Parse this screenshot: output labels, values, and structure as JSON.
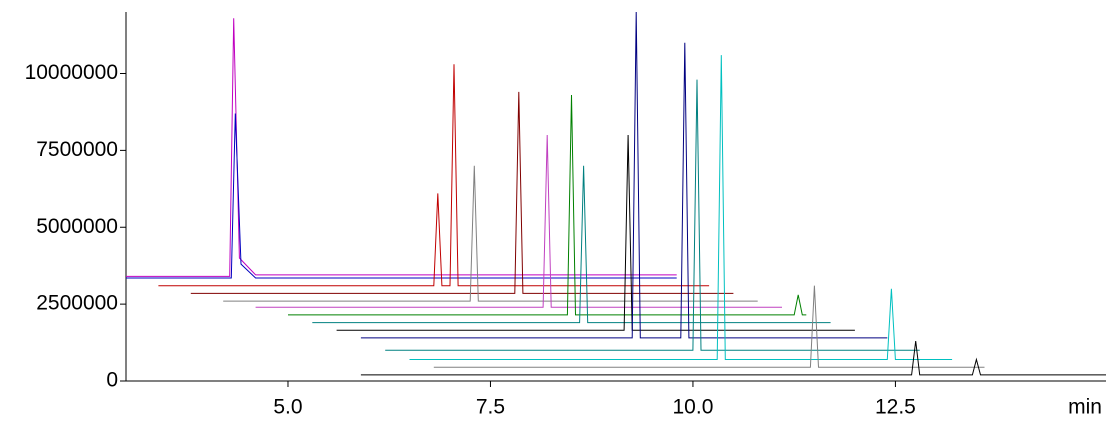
{
  "chart_data": {
    "type": "line",
    "x_unit_label": "min",
    "xlim": [
      3.0,
      15.1
    ],
    "ylim": [
      0,
      12000000
    ],
    "xticks": [
      {
        "value": 5,
        "label": "5.0"
      },
      7.5,
      {
        "value": 10,
        "label": "10.0"
      },
      12.5
    ],
    "yticks": [
      0,
      2500000,
      5000000,
      7500000,
      10000000
    ],
    "series": [
      {
        "color": "#c000c0",
        "x": [
          3.0,
          4.28,
          4.33,
          4.4,
          4.6,
          9.8
        ],
        "values": [
          3400000,
          3400000,
          11800000,
          4000000,
          3450000,
          3450000
        ]
      },
      {
        "color": "#0000c0",
        "x": [
          3.0,
          4.3,
          4.35,
          4.42,
          4.6,
          9.8
        ],
        "values": [
          3350000,
          3350000,
          8700000,
          3800000,
          3350000,
          3350000
        ]
      },
      {
        "color": "#c00000",
        "x": [
          3.4,
          6.8,
          6.85,
          6.9,
          7.0,
          7.05,
          7.1,
          10.2
        ],
        "values": [
          3100000,
          3100000,
          6100000,
          3100000,
          3100000,
          10300000,
          3100000,
          3100000
        ]
      },
      {
        "color": "#800000",
        "x": [
          3.8,
          7.8,
          7.85,
          7.9,
          10.5
        ],
        "values": [
          2850000,
          2850000,
          9400000,
          2850000,
          2850000
        ]
      },
      {
        "color": "#808080",
        "x": [
          4.2,
          7.25,
          7.3,
          7.35,
          10.8
        ],
        "values": [
          2600000,
          2600000,
          7000000,
          2600000,
          2600000
        ]
      },
      {
        "color": "#c040c0",
        "x": [
          4.6,
          8.15,
          8.2,
          8.25,
          11.1
        ],
        "values": [
          2400000,
          2400000,
          8000000,
          2400000,
          2400000
        ]
      },
      {
        "color": "#008000",
        "x": [
          5.0,
          8.45,
          8.5,
          8.55,
          11.25,
          11.3,
          11.35,
          11.4
        ],
        "values": [
          2150000,
          2150000,
          9300000,
          2150000,
          2150000,
          2800000,
          2150000,
          2150000
        ]
      },
      {
        "color": "#008080",
        "x": [
          5.3,
          8.6,
          8.65,
          8.7,
          11.7
        ],
        "values": [
          1900000,
          1900000,
          7000000,
          1900000,
          1900000
        ]
      },
      {
        "color": "#000000",
        "x": [
          5.6,
          9.15,
          9.2,
          9.25,
          12.0
        ],
        "values": [
          1650000,
          1650000,
          8000000,
          1650000,
          1650000
        ]
      },
      {
        "color": "#000080",
        "x": [
          5.9,
          9.25,
          9.3,
          9.35,
          9.85,
          9.9,
          9.95,
          12.4
        ],
        "values": [
          1400000,
          1400000,
          12000000,
          1400000,
          1400000,
          11000000,
          1400000,
          1400000
        ]
      },
      {
        "color": "#008080",
        "x": [
          6.2,
          10.0,
          10.05,
          10.1,
          12.8
        ],
        "values": [
          1000000,
          1000000,
          9800000,
          1000000,
          1000000
        ]
      },
      {
        "color": "#00c0c0",
        "x": [
          6.5,
          10.3,
          10.35,
          10.4,
          12.4,
          12.45,
          12.5,
          13.2
        ],
        "values": [
          700000,
          700000,
          10600000,
          700000,
          700000,
          3000000,
          700000,
          700000
        ]
      },
      {
        "color": "#808080",
        "x": [
          6.8,
          11.45,
          11.5,
          11.55,
          13.6
        ],
        "values": [
          450000,
          450000,
          3100000,
          450000,
          450000
        ]
      },
      {
        "color": "#000000",
        "x": [
          5.9,
          12.7,
          12.75,
          12.8,
          13.45,
          13.5,
          13.55,
          15.1
        ],
        "values": [
          200000,
          200000,
          1300000,
          200000,
          200000,
          700000,
          200000,
          200000
        ]
      }
    ]
  }
}
